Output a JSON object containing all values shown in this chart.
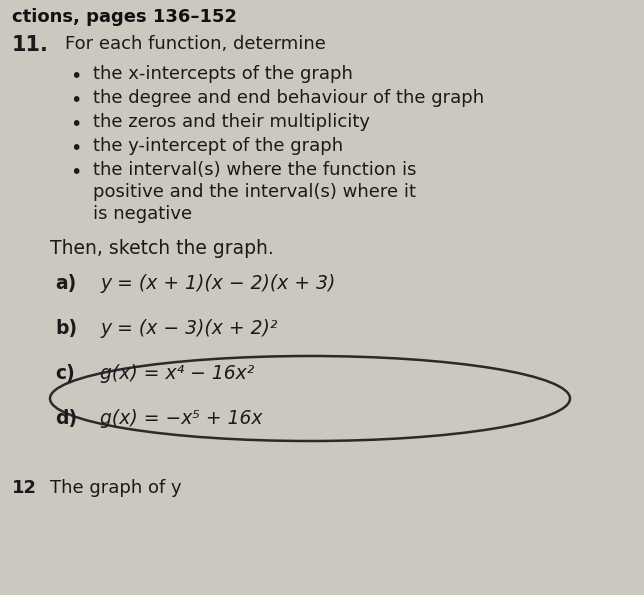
{
  "background_color": "#ccc8c0",
  "header_text": "ctions, pages 136–152",
  "problem_number": "11.",
  "intro_text": "For each function, determine",
  "bullets": [
    "the x-intercepts of the graph",
    "the degree and end behaviour of the graph",
    "the zeros and their multiplicity",
    "the y-intercept of the graph",
    "the interval(s) where the function is\npositive and the interval(s) where it\nis negative"
  ],
  "then_text": "Then, sketch the graph.",
  "parts": [
    {
      "label": "a)",
      "text": "y = (x + 1)(x − 2)(x + 3)"
    },
    {
      "label": "b)",
      "text": "y = (x − 3)(x + 2)²"
    },
    {
      "label": "c)",
      "text": "g(x) = x⁴ − 16x²"
    },
    {
      "label": "d)",
      "text": "g(x) = −x⁵ + 16x"
    }
  ],
  "footer_number": "12",
  "footer_text": "The graph of y",
  "text_color": "#1a1a1a",
  "header_color": "#111111",
  "bullet_color": "#1a1a1a",
  "ellipse_color": "#2a2a2a",
  "font_size_header": 13,
  "font_size_body": 13,
  "font_size_number": 15,
  "font_size_parts": 13.5,
  "font_size_footer": 13
}
